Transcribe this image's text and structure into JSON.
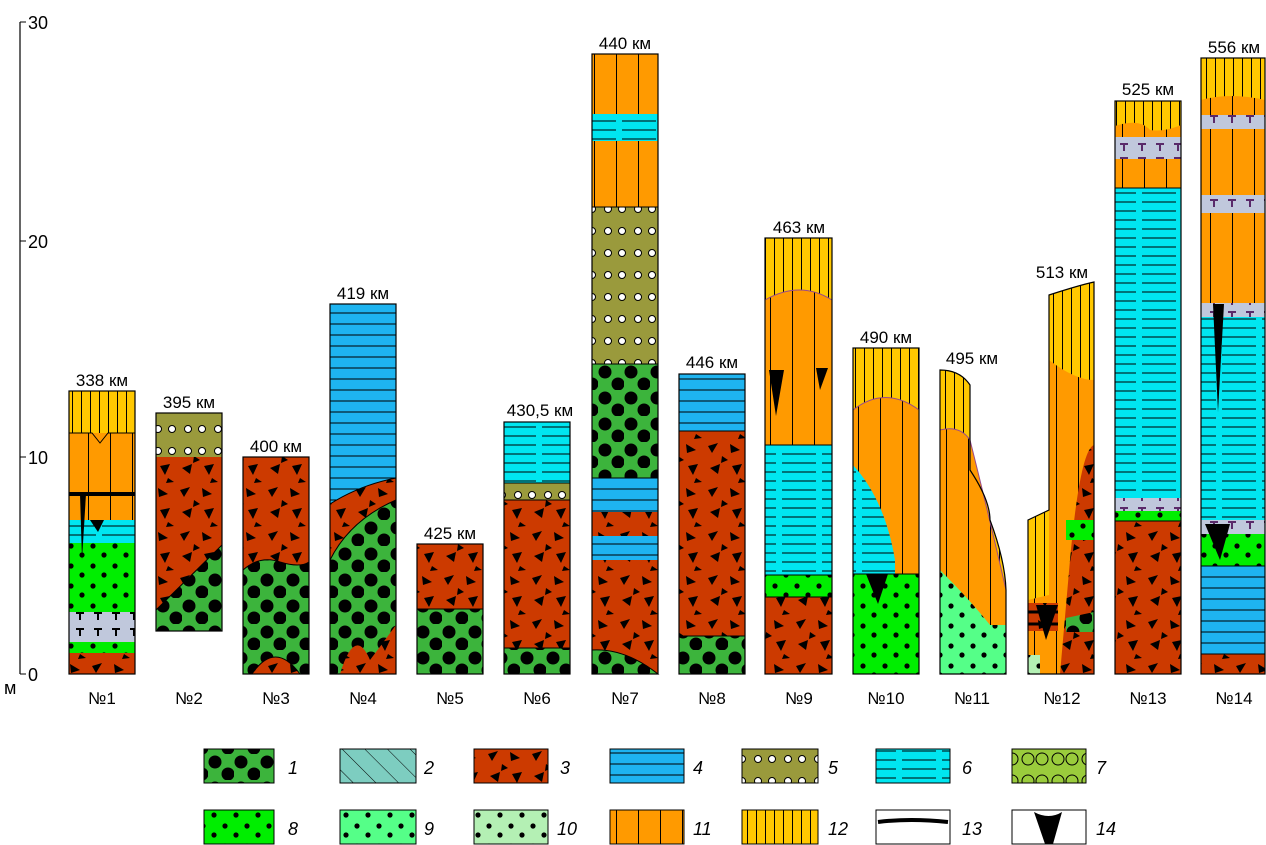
{
  "axis": {
    "unit": "м",
    "ticks": [
      "0",
      "10",
      "20",
      "30"
    ]
  },
  "columns": [
    {
      "number": "№1",
      "distance": "338 км"
    },
    {
      "number": "№2",
      "distance": "395 км"
    },
    {
      "number": "№3",
      "distance": "400 км"
    },
    {
      "number": "№4",
      "distance": "419 км"
    },
    {
      "number": "№5",
      "distance": "425 км"
    },
    {
      "number": "№6",
      "distance": "430,5 км"
    },
    {
      "number": "№7",
      "distance": "440 км"
    },
    {
      "number": "№8",
      "distance": "446 км"
    },
    {
      "number": "№9",
      "distance": "463 км"
    },
    {
      "number": "№10",
      "distance": "490 км"
    },
    {
      "number": "№11",
      "distance": "495 км"
    },
    {
      "number": "№12",
      "distance": "513 км"
    },
    {
      "number": "№13",
      "distance": "525 км"
    },
    {
      "number": "№14",
      "distance": "556 км"
    }
  ],
  "legend": [
    "1",
    "2",
    "3",
    "4",
    "5",
    "6",
    "7",
    "8",
    "9",
    "10",
    "11",
    "12",
    "13",
    "14"
  ],
  "colors": {
    "dark_green": "#3cb43c",
    "teal": "#7dcdc0",
    "red_brown": "#cc3a00",
    "blue": "#1eb4f0",
    "olive": "#9a9a3c",
    "cyan": "#00e6f0",
    "yellow_green": "#9acc3c",
    "bright_green": "#00ee00",
    "light_green": "#55ff88",
    "pale_green": "#b4f0b4",
    "orange": "#ff9a00",
    "yellow": "#ffc800",
    "grey_blue": "#c0c8dc"
  }
}
